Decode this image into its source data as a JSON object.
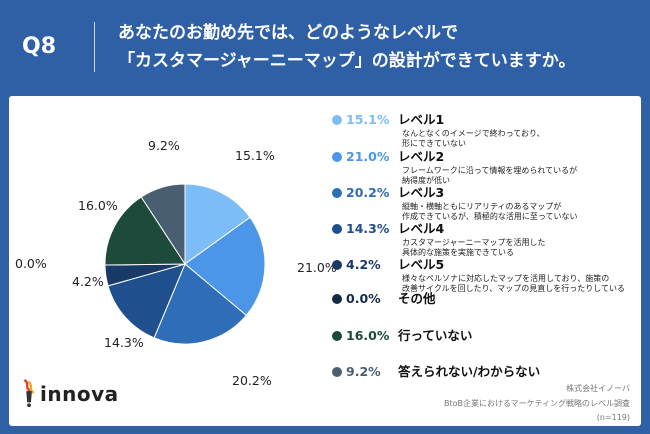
{
  "header": {
    "qnum": "Q8",
    "question_line1": "あなたのお勤め先では、どのようなレベルで",
    "question_line2": "「カスタマージャーニーマップ」の設計ができていますか。"
  },
  "chart_data": {
    "type": "pie",
    "start": "12 o'clock, clockwise",
    "slices": [
      {
        "label": "レベル1",
        "value": 15.1,
        "display": "15.1%",
        "color": "#7dbdf7",
        "desc": [
          "なんとなくのイメージで終わっており、",
          "形にできていない"
        ]
      },
      {
        "label": "レベル2",
        "value": 21.0,
        "display": "21.0%",
        "color": "#4b96e6",
        "desc": [
          "フレームワークに沿って情報を埋められているが",
          "納得度が低い"
        ]
      },
      {
        "label": "レベル3",
        "value": 20.2,
        "display": "20.2%",
        "color": "#2f6db8",
        "desc": [
          "縦軸・横軸ともにリアリティのあるマップが",
          "作成できているが、積極的な活用に至っていない"
        ]
      },
      {
        "label": "レベル4",
        "value": 14.3,
        "display": "14.3%",
        "color": "#1f4f8c",
        "desc": [
          "カスタマージャーニーマップを活用した",
          "具体的な施策を実施できている"
        ]
      },
      {
        "label": "レベル5",
        "value": 4.2,
        "display": "4.2%",
        "color": "#193a66",
        "desc": [
          "様々なペルソナに対応したマップを活用しており、施策の",
          "改善サイクルを回したり、マップの見直しを行ったりしている"
        ]
      },
      {
        "label": "その他",
        "value": 0.0,
        "display": "0.0%",
        "color": "#142a45",
        "desc": []
      },
      {
        "label": "行っていない",
        "value": 16.0,
        "display": "16.0%",
        "color": "#1d4a3a",
        "desc": []
      },
      {
        "label": "答えられない/わからない",
        "value": 9.2,
        "display": "9.2%",
        "color": "#4a5e72",
        "desc": []
      }
    ]
  },
  "brand": {
    "logo_text": "innova"
  },
  "source": {
    "line1": "株式会社イノーバ",
    "line2": "BtoB企業におけるマーケティング戦略のレベル調査",
    "line3": "(n=119)"
  }
}
